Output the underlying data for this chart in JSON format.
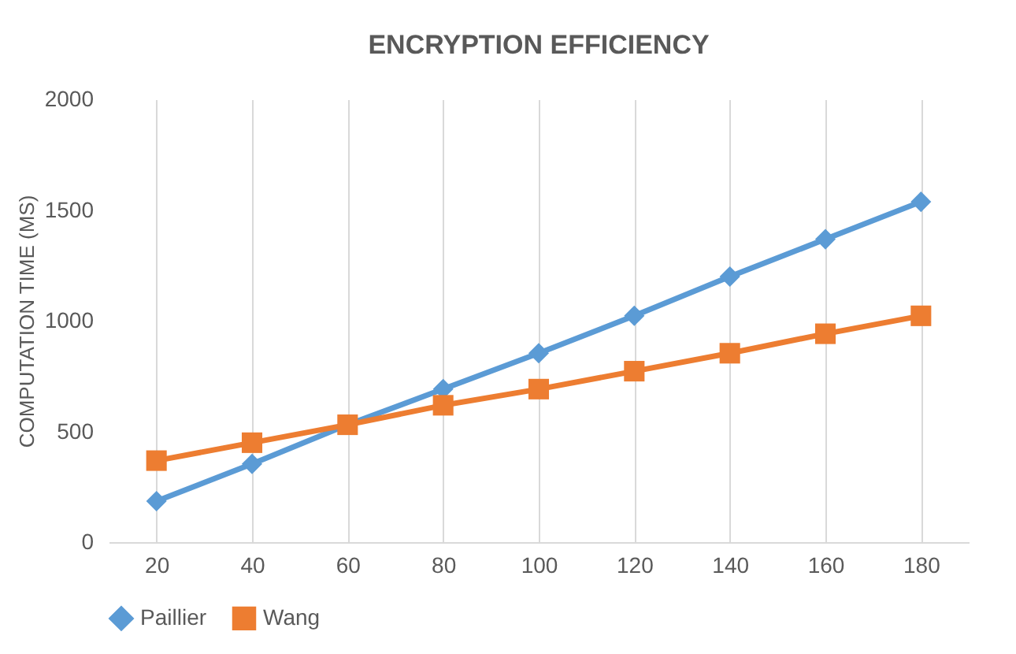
{
  "chart_data": {
    "type": "line",
    "title": "ENCRYPTION EFFICIENCY",
    "ylabel": "COMPUTATION TIME (MS)",
    "categories": [
      "20",
      "40",
      "60",
      "80",
      "100",
      "120",
      "140",
      "160",
      "180"
    ],
    "series": [
      {
        "name": "Paillier",
        "color": "#5b9bd5",
        "marker": "diamond",
        "values": [
          185,
          353,
          530,
          691,
          853,
          1022,
          1199,
          1368,
          1537
        ]
      },
      {
        "name": "Wang",
        "color": "#ed7d31",
        "marker": "square",
        "values": [
          368,
          449,
          530,
          618,
          691,
          772,
          853,
          941,
          1022
        ]
      }
    ],
    "ylim": [
      0,
      2000
    ],
    "yticks": [
      0,
      500,
      1000,
      1500,
      2000
    ],
    "grid": "x",
    "legend": "bottom",
    "line_style": "solid"
  }
}
